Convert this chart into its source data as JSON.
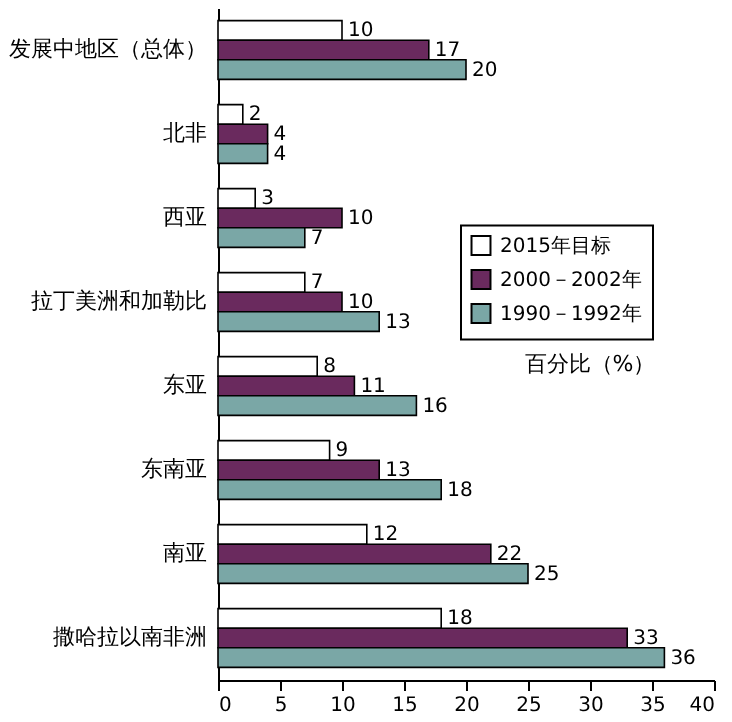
{
  "chart_data": {
    "type": "bar",
    "orientation": "horizontal",
    "categories": [
      "发展中地区（总体）",
      "北非",
      "西亚",
      "拉丁美洲和加勒比",
      "东亚",
      "东南亚",
      "南亚",
      "撒哈拉以南非洲"
    ],
    "series": [
      {
        "name": "2015年目标",
        "color": "#ffffff",
        "values": [
          10,
          2,
          3,
          7,
          8,
          9,
          12,
          18
        ]
      },
      {
        "name": "2000－2002年",
        "color": "#6a2a5e",
        "values": [
          17,
          4,
          10,
          10,
          11,
          13,
          22,
          33
        ]
      },
      {
        "name": "1990－1992年",
        "color": "#7aa7a6",
        "values": [
          20,
          4,
          7,
          13,
          16,
          18,
          25,
          36
        ]
      }
    ],
    "xlim": [
      0,
      40
    ],
    "xticks": [
      0,
      5,
      10,
      15,
      20,
      25,
      30,
      35,
      40
    ],
    "data_labels": true,
    "grid": false,
    "legend": "right",
    "annotations": [
      "百分比（%）"
    ]
  }
}
